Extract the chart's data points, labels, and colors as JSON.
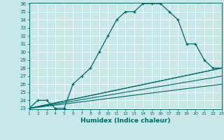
{
  "title": "",
  "xlabel": "Humidex (Indice chaleur)",
  "background_color": "#c8e8e8",
  "line_color": "#006666",
  "xlim": [
    1,
    23
  ],
  "ylim": [
    23,
    36
  ],
  "xticks": [
    1,
    2,
    3,
    4,
    5,
    6,
    7,
    8,
    9,
    10,
    11,
    12,
    13,
    14,
    15,
    16,
    17,
    18,
    19,
    20,
    21,
    22,
    23
  ],
  "yticks": [
    23,
    24,
    25,
    26,
    27,
    28,
    29,
    30,
    31,
    32,
    33,
    34,
    35,
    36
  ],
  "main_series": {
    "x": [
      1,
      2,
      3,
      4,
      5,
      6,
      7,
      8,
      9,
      10,
      11,
      12,
      13,
      14,
      15,
      16,
      17,
      18,
      19,
      20,
      21,
      22,
      23
    ],
    "y": [
      23,
      24,
      24,
      23,
      23,
      26,
      27,
      28,
      30,
      32,
      34,
      35,
      35,
      36,
      36,
      36,
      35,
      34,
      31,
      31,
      29,
      28,
      28
    ]
  },
  "straight_lines": [
    {
      "x": [
        1,
        23
      ],
      "y": [
        23,
        28
      ]
    },
    {
      "x": [
        1,
        23
      ],
      "y": [
        23,
        28
      ]
    },
    {
      "x": [
        1,
        23
      ],
      "y": [
        23,
        27
      ]
    },
    {
      "x": [
        1,
        23
      ],
      "y": [
        23,
        26
      ]
    }
  ]
}
